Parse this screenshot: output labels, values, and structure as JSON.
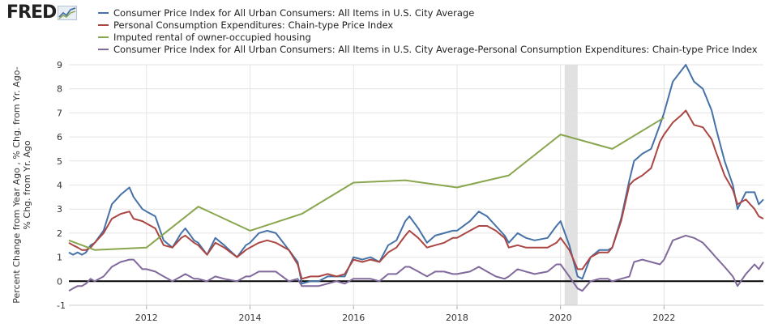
{
  "header": {
    "logo_text": "FRED",
    "logo_icon": "chart-line-icon"
  },
  "chart_data": {
    "type": "line",
    "ylabel": "Percent Change from Year Ago , % Chg. from Yr. Ago- % Chg. from Yr. Ago",
    "ylabel_lines": [
      "Percent Change from Year Ago , % Chg. from Yr. Ago-",
      "% Chg. from Yr. Ago"
    ],
    "xlabel": "",
    "x_ticks": [
      "2012",
      "2014",
      "2016",
      "2018",
      "2020",
      "2022"
    ],
    "y_ticks": [
      "-1",
      "0",
      "1",
      "2",
      "3",
      "4",
      "5",
      "6",
      "7",
      "8",
      "9"
    ],
    "xlim": [
      2010.5,
      2023.92
    ],
    "ylim": [
      -1,
      9
    ],
    "grid": true,
    "legend_position": "top",
    "recession_shading": [
      2020.08,
      2020.33
    ],
    "series": [
      {
        "name": "Consumer Price Index for All Urban Consumers: All Items in U.S. City Average",
        "color": "#4572a7",
        "points": [
          [
            2010.5,
            1.2
          ],
          [
            2010.58,
            1.1
          ],
          [
            2010.67,
            1.2
          ],
          [
            2010.75,
            1.1
          ],
          [
            2010.83,
            1.2
          ],
          [
            2010.92,
            1.5
          ],
          [
            2011.0,
            1.6
          ],
          [
            2011.17,
            2.1
          ],
          [
            2011.33,
            3.2
          ],
          [
            2011.5,
            3.6
          ],
          [
            2011.67,
            3.9
          ],
          [
            2011.75,
            3.5
          ],
          [
            2011.92,
            3.0
          ],
          [
            2012.0,
            2.9
          ],
          [
            2012.17,
            2.7
          ],
          [
            2012.33,
            1.7
          ],
          [
            2012.5,
            1.4
          ],
          [
            2012.67,
            2.0
          ],
          [
            2012.75,
            2.2
          ],
          [
            2012.92,
            1.7
          ],
          [
            2013.0,
            1.6
          ],
          [
            2013.17,
            1.1
          ],
          [
            2013.33,
            1.8
          ],
          [
            2013.5,
            1.5
          ],
          [
            2013.75,
            1.0
          ],
          [
            2013.92,
            1.5
          ],
          [
            2014.0,
            1.6
          ],
          [
            2014.17,
            2.0
          ],
          [
            2014.33,
            2.1
          ],
          [
            2014.5,
            2.0
          ],
          [
            2014.75,
            1.3
          ],
          [
            2014.92,
            0.8
          ],
          [
            2015.0,
            -0.1
          ],
          [
            2015.17,
            0.0
          ],
          [
            2015.33,
            0.0
          ],
          [
            2015.5,
            0.2
          ],
          [
            2015.67,
            0.2
          ],
          [
            2015.83,
            0.2
          ],
          [
            2016.0,
            1.0
          ],
          [
            2016.17,
            0.9
          ],
          [
            2016.33,
            1.0
          ],
          [
            2016.5,
            0.8
          ],
          [
            2016.67,
            1.5
          ],
          [
            2016.83,
            1.7
          ],
          [
            2017.0,
            2.5
          ],
          [
            2017.08,
            2.7
          ],
          [
            2017.25,
            2.2
          ],
          [
            2017.42,
            1.6
          ],
          [
            2017.58,
            1.9
          ],
          [
            2017.75,
            2.0
          ],
          [
            2017.92,
            2.1
          ],
          [
            2018.0,
            2.1
          ],
          [
            2018.25,
            2.5
          ],
          [
            2018.42,
            2.9
          ],
          [
            2018.58,
            2.7
          ],
          [
            2018.75,
            2.3
          ],
          [
            2018.92,
            1.9
          ],
          [
            2019.0,
            1.6
          ],
          [
            2019.17,
            2.0
          ],
          [
            2019.33,
            1.8
          ],
          [
            2019.5,
            1.7
          ],
          [
            2019.75,
            1.8
          ],
          [
            2019.92,
            2.3
          ],
          [
            2020.0,
            2.5
          ],
          [
            2020.17,
            1.5
          ],
          [
            2020.33,
            0.2
          ],
          [
            2020.42,
            0.1
          ],
          [
            2020.58,
            1.0
          ],
          [
            2020.75,
            1.3
          ],
          [
            2020.92,
            1.3
          ],
          [
            2021.0,
            1.4
          ],
          [
            2021.17,
            2.6
          ],
          [
            2021.33,
            4.2
          ],
          [
            2021.42,
            5.0
          ],
          [
            2021.58,
            5.3
          ],
          [
            2021.75,
            5.5
          ],
          [
            2021.92,
            6.5
          ],
          [
            2022.0,
            7.0
          ],
          [
            2022.17,
            8.3
          ],
          [
            2022.42,
            9.0
          ],
          [
            2022.58,
            8.3
          ],
          [
            2022.75,
            8.0
          ],
          [
            2022.92,
            7.1
          ],
          [
            2023.0,
            6.4
          ],
          [
            2023.17,
            5.0
          ],
          [
            2023.33,
            4.0
          ],
          [
            2023.42,
            3.0
          ],
          [
            2023.58,
            3.7
          ],
          [
            2023.75,
            3.7
          ],
          [
            2023.83,
            3.2
          ],
          [
            2023.92,
            3.4
          ]
        ]
      },
      {
        "name": "Personal Consumption Expenditures: Chain-type Price Index",
        "color": "#aa4643",
        "points": [
          [
            2010.5,
            1.6
          ],
          [
            2010.58,
            1.5
          ],
          [
            2010.67,
            1.4
          ],
          [
            2010.75,
            1.3
          ],
          [
            2010.83,
            1.3
          ],
          [
            2010.92,
            1.4
          ],
          [
            2011.0,
            1.6
          ],
          [
            2011.17,
            2.0
          ],
          [
            2011.33,
            2.6
          ],
          [
            2011.5,
            2.8
          ],
          [
            2011.67,
            2.9
          ],
          [
            2011.75,
            2.6
          ],
          [
            2011.92,
            2.5
          ],
          [
            2012.0,
            2.4
          ],
          [
            2012.17,
            2.2
          ],
          [
            2012.33,
            1.5
          ],
          [
            2012.5,
            1.4
          ],
          [
            2012.67,
            1.8
          ],
          [
            2012.75,
            1.9
          ],
          [
            2012.92,
            1.6
          ],
          [
            2013.0,
            1.5
          ],
          [
            2013.17,
            1.1
          ],
          [
            2013.33,
            1.6
          ],
          [
            2013.5,
            1.4
          ],
          [
            2013.75,
            1.0
          ],
          [
            2013.92,
            1.3
          ],
          [
            2014.0,
            1.4
          ],
          [
            2014.17,
            1.6
          ],
          [
            2014.33,
            1.7
          ],
          [
            2014.5,
            1.6
          ],
          [
            2014.75,
            1.3
          ],
          [
            2014.92,
            0.7
          ],
          [
            2015.0,
            0.1
          ],
          [
            2015.17,
            0.2
          ],
          [
            2015.33,
            0.2
          ],
          [
            2015.5,
            0.3
          ],
          [
            2015.67,
            0.2
          ],
          [
            2015.83,
            0.3
          ],
          [
            2016.0,
            0.9
          ],
          [
            2016.17,
            0.8
          ],
          [
            2016.33,
            0.9
          ],
          [
            2016.5,
            0.8
          ],
          [
            2016.67,
            1.2
          ],
          [
            2016.83,
            1.4
          ],
          [
            2017.0,
            1.9
          ],
          [
            2017.08,
            2.1
          ],
          [
            2017.25,
            1.8
          ],
          [
            2017.42,
            1.4
          ],
          [
            2017.58,
            1.5
          ],
          [
            2017.75,
            1.6
          ],
          [
            2017.92,
            1.8
          ],
          [
            2018.0,
            1.8
          ],
          [
            2018.25,
            2.1
          ],
          [
            2018.42,
            2.3
          ],
          [
            2018.58,
            2.3
          ],
          [
            2018.75,
            2.1
          ],
          [
            2018.92,
            1.8
          ],
          [
            2019.0,
            1.4
          ],
          [
            2019.17,
            1.5
          ],
          [
            2019.33,
            1.4
          ],
          [
            2019.5,
            1.4
          ],
          [
            2019.75,
            1.4
          ],
          [
            2019.92,
            1.6
          ],
          [
            2020.0,
            1.8
          ],
          [
            2020.17,
            1.3
          ],
          [
            2020.33,
            0.5
          ],
          [
            2020.42,
            0.5
          ],
          [
            2020.58,
            1.0
          ],
          [
            2020.75,
            1.2
          ],
          [
            2020.92,
            1.2
          ],
          [
            2021.0,
            1.4
          ],
          [
            2021.17,
            2.5
          ],
          [
            2021.33,
            4.0
          ],
          [
            2021.42,
            4.2
          ],
          [
            2021.58,
            4.4
          ],
          [
            2021.75,
            4.7
          ],
          [
            2021.92,
            5.8
          ],
          [
            2022.0,
            6.1
          ],
          [
            2022.17,
            6.6
          ],
          [
            2022.33,
            6.9
          ],
          [
            2022.42,
            7.1
          ],
          [
            2022.58,
            6.5
          ],
          [
            2022.75,
            6.4
          ],
          [
            2022.92,
            5.9
          ],
          [
            2023.0,
            5.4
          ],
          [
            2023.17,
            4.4
          ],
          [
            2023.33,
            3.8
          ],
          [
            2023.42,
            3.2
          ],
          [
            2023.58,
            3.4
          ],
          [
            2023.75,
            3.0
          ],
          [
            2023.83,
            2.7
          ],
          [
            2023.92,
            2.6
          ]
        ]
      },
      {
        "name": "Imputed rental of owner-occupied housing",
        "color": "#89a54e",
        "points": [
          [
            2010.5,
            1.7
          ],
          [
            2011.0,
            1.3
          ],
          [
            2012.0,
            1.4
          ],
          [
            2013.0,
            3.1
          ],
          [
            2014.0,
            2.1
          ],
          [
            2015.0,
            2.8
          ],
          [
            2016.0,
            4.1
          ],
          [
            2017.0,
            4.2
          ],
          [
            2018.0,
            3.9
          ],
          [
            2019.0,
            4.4
          ],
          [
            2020.0,
            6.1
          ],
          [
            2021.0,
            5.5
          ],
          [
            2022.0,
            6.8
          ]
        ]
      },
      {
        "name": "Consumer Price Index for All Urban Consumers: All Items in U.S. City Average-Personal Consumption Expenditures: Chain-type Price Index",
        "color": "#80699b",
        "points": [
          [
            2010.5,
            -0.4
          ],
          [
            2010.58,
            -0.3
          ],
          [
            2010.67,
            -0.2
          ],
          [
            2010.75,
            -0.2
          ],
          [
            2010.83,
            -0.1
          ],
          [
            2010.92,
            0.1
          ],
          [
            2011.0,
            0.0
          ],
          [
            2011.17,
            0.2
          ],
          [
            2011.33,
            0.6
          ],
          [
            2011.5,
            0.8
          ],
          [
            2011.67,
            0.9
          ],
          [
            2011.75,
            0.9
          ],
          [
            2011.92,
            0.5
          ],
          [
            2012.0,
            0.5
          ],
          [
            2012.17,
            0.4
          ],
          [
            2012.33,
            0.2
          ],
          [
            2012.5,
            0.0
          ],
          [
            2012.67,
            0.2
          ],
          [
            2012.75,
            0.3
          ],
          [
            2012.92,
            0.1
          ],
          [
            2013.0,
            0.1
          ],
          [
            2013.17,
            0.0
          ],
          [
            2013.33,
            0.2
          ],
          [
            2013.5,
            0.1
          ],
          [
            2013.75,
            0.0
          ],
          [
            2013.92,
            0.2
          ],
          [
            2014.0,
            0.2
          ],
          [
            2014.17,
            0.4
          ],
          [
            2014.33,
            0.4
          ],
          [
            2014.5,
            0.4
          ],
          [
            2014.75,
            0.0
          ],
          [
            2014.92,
            0.1
          ],
          [
            2015.0,
            -0.2
          ],
          [
            2015.17,
            -0.2
          ],
          [
            2015.33,
            -0.2
          ],
          [
            2015.5,
            -0.1
          ],
          [
            2015.67,
            0.0
          ],
          [
            2015.83,
            -0.1
          ],
          [
            2016.0,
            0.1
          ],
          [
            2016.17,
            0.1
          ],
          [
            2016.33,
            0.1
          ],
          [
            2016.5,
            0.0
          ],
          [
            2016.67,
            0.3
          ],
          [
            2016.83,
            0.3
          ],
          [
            2017.0,
            0.6
          ],
          [
            2017.08,
            0.6
          ],
          [
            2017.25,
            0.4
          ],
          [
            2017.42,
            0.2
          ],
          [
            2017.58,
            0.4
          ],
          [
            2017.75,
            0.4
          ],
          [
            2017.92,
            0.3
          ],
          [
            2018.0,
            0.3
          ],
          [
            2018.25,
            0.4
          ],
          [
            2018.42,
            0.6
          ],
          [
            2018.58,
            0.4
          ],
          [
            2018.75,
            0.2
          ],
          [
            2018.92,
            0.1
          ],
          [
            2019.0,
            0.2
          ],
          [
            2019.17,
            0.5
          ],
          [
            2019.33,
            0.4
          ],
          [
            2019.5,
            0.3
          ],
          [
            2019.75,
            0.4
          ],
          [
            2019.92,
            0.7
          ],
          [
            2020.0,
            0.7
          ],
          [
            2020.17,
            0.2
          ],
          [
            2020.33,
            -0.3
          ],
          [
            2020.42,
            -0.4
          ],
          [
            2020.58,
            0.0
          ],
          [
            2020.75,
            0.1
          ],
          [
            2020.92,
            0.1
          ],
          [
            2021.0,
            0.0
          ],
          [
            2021.17,
            0.1
          ],
          [
            2021.33,
            0.2
          ],
          [
            2021.42,
            0.8
          ],
          [
            2021.58,
            0.9
          ],
          [
            2021.75,
            0.8
          ],
          [
            2021.92,
            0.7
          ],
          [
            2022.0,
            0.9
          ],
          [
            2022.17,
            1.7
          ],
          [
            2022.42,
            1.9
          ],
          [
            2022.58,
            1.8
          ],
          [
            2022.75,
            1.6
          ],
          [
            2022.92,
            1.2
          ],
          [
            2023.0,
            1.0
          ],
          [
            2023.17,
            0.6
          ],
          [
            2023.33,
            0.2
          ],
          [
            2023.42,
            -0.2
          ],
          [
            2023.58,
            0.3
          ],
          [
            2023.75,
            0.7
          ],
          [
            2023.83,
            0.5
          ],
          [
            2023.92,
            0.8
          ]
        ]
      }
    ]
  }
}
